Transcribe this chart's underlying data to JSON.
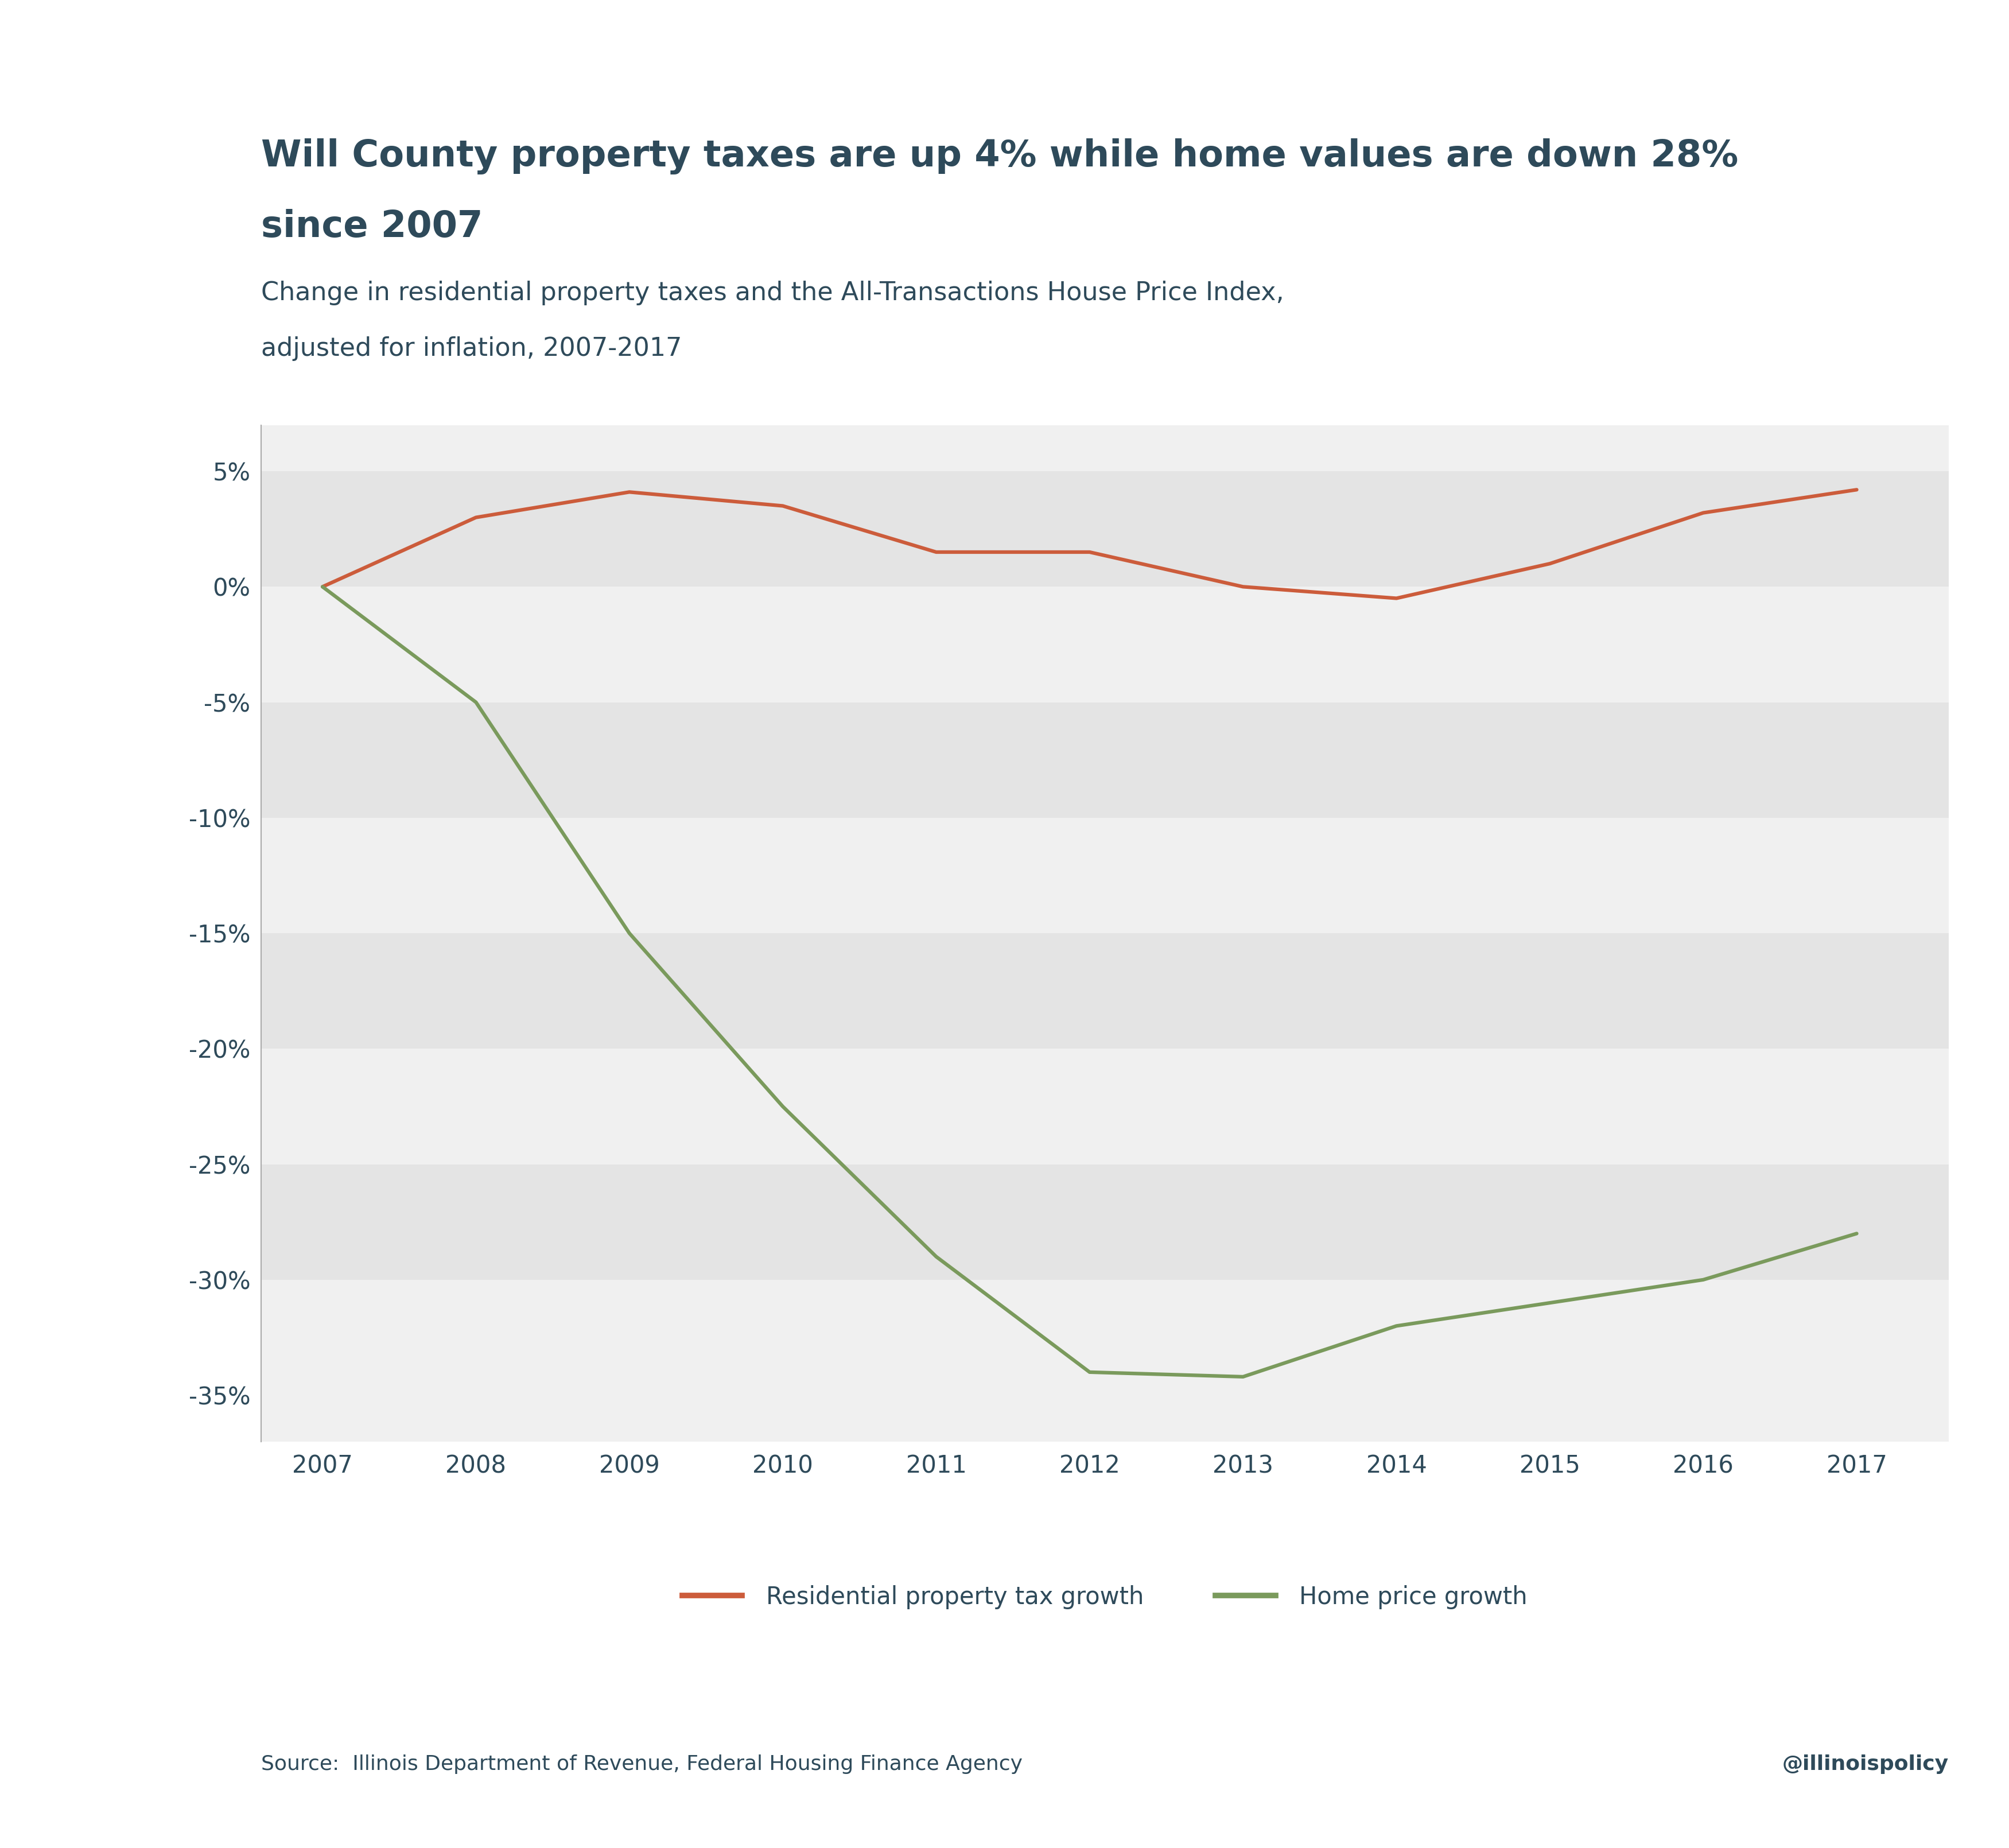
{
  "title_line1": "Will County property taxes are up 4% while home values are down 28%",
  "title_line2": "since 2007",
  "subtitle_line1": "Change in residential property taxes and the All-Transactions House Price Index,",
  "subtitle_line2": "adjusted for inflation, 2007-2017",
  "years": [
    2007,
    2008,
    2009,
    2010,
    2011,
    2012,
    2013,
    2014,
    2015,
    2016,
    2017
  ],
  "property_tax": [
    0.0,
    3.0,
    4.1,
    3.5,
    1.5,
    1.5,
    0.0,
    -0.5,
    1.0,
    3.2,
    4.2
  ],
  "home_price": [
    0.0,
    -5.0,
    -15.0,
    -22.5,
    -29.0,
    -34.0,
    -34.2,
    -32.0,
    -31.0,
    -30.0,
    -28.0
  ],
  "tax_color": "#cc5c3b",
  "home_color": "#7a9a5c",
  "title_color": "#2e4a5a",
  "text_color": "#2e4a5a",
  "bg_color": "#ffffff",
  "band_light": "#f0f0f0",
  "band_dark": "#e4e4e4",
  "ylim": [
    -37,
    7
  ],
  "yticks": [
    5,
    0,
    -5,
    -10,
    -15,
    -20,
    -25,
    -30,
    -35
  ],
  "source_text": "Source:  Illinois Department of Revenue, Federal Housing Finance Agency",
  "handle_text": "@illinoispolicy",
  "legend_tax": "Residential property tax growth",
  "legend_home": "Home price growth",
  "line_width": 4.5,
  "title_fontsize": 46,
  "subtitle_fontsize": 32,
  "tick_fontsize": 30,
  "legend_fontsize": 30,
  "source_fontsize": 26
}
